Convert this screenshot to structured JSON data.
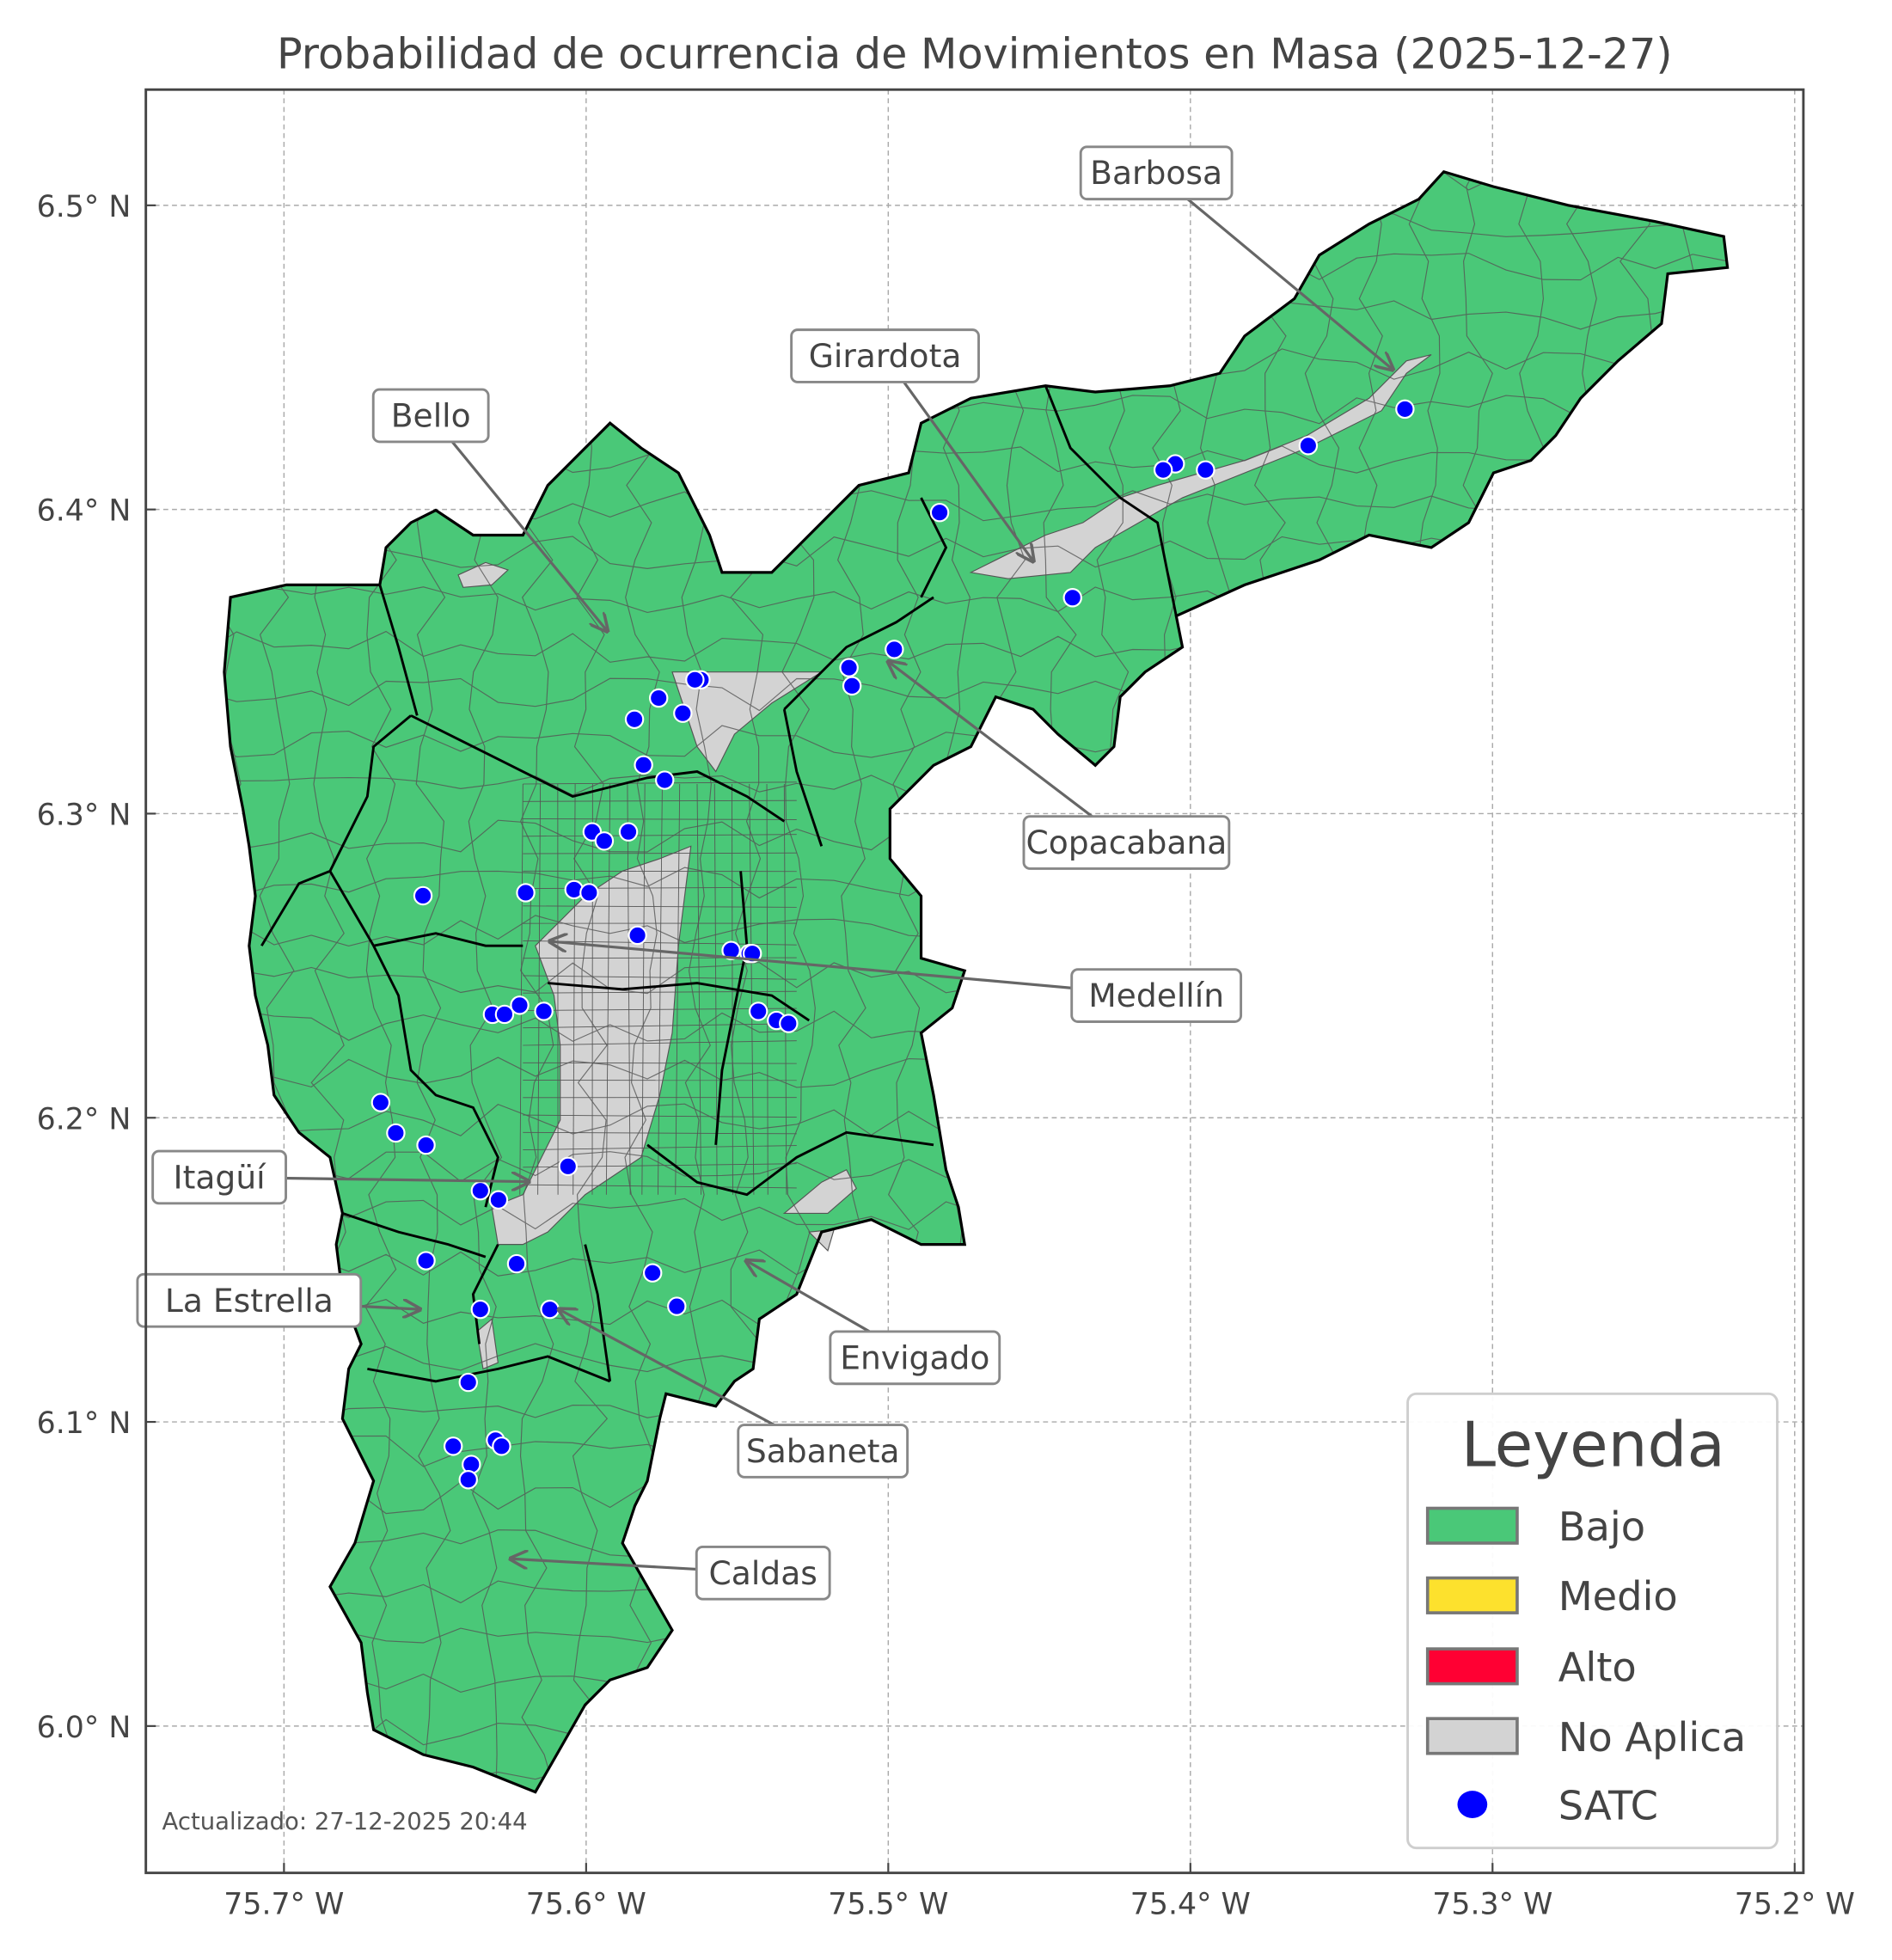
{
  "chart_data": {
    "type": "map",
    "title": "Probabilidad de ocurrencia de Movimientos en Masa (2025-12-27)",
    "xlim": [
      -75.746,
      -75.197
    ],
    "ylim": [
      5.952,
      6.538
    ],
    "grid": true,
    "xticks": [
      {
        "value": -75.7,
        "label": "75.7° W"
      },
      {
        "value": -75.6,
        "label": "75.6° W"
      },
      {
        "value": -75.5,
        "label": "75.5° W"
      },
      {
        "value": -75.4,
        "label": "75.4° W"
      },
      {
        "value": -75.3,
        "label": "75.3° W"
      },
      {
        "value": -75.2,
        "label": "75.2° W"
      }
    ],
    "yticks": [
      {
        "value": 6.0,
        "label": "6.0° N"
      },
      {
        "value": 6.1,
        "label": "6.1° N"
      },
      {
        "value": 6.2,
        "label": "6.2° N"
      },
      {
        "value": 6.3,
        "label": "6.3° N"
      },
      {
        "value": 6.4,
        "label": "6.4° N"
      },
      {
        "value": 6.5,
        "label": "6.5° N"
      }
    ],
    "region_class": "Bajo",
    "colors": {
      "Bajo": "#4ac878",
      "Medio": "#fde12d",
      "Alto": "#ff0033",
      "No Aplica": "#d3d3d3",
      "SATC": "#0000ff"
    },
    "satc_points": [
      [
        -75.329,
        6.433
      ],
      [
        -75.361,
        6.421
      ],
      [
        -75.395,
        6.413
      ],
      [
        -75.405,
        6.415
      ],
      [
        -75.409,
        6.413
      ],
      [
        -75.483,
        6.399
      ],
      [
        -75.439,
        6.371
      ],
      [
        -75.498,
        6.354
      ],
      [
        -75.513,
        6.348
      ],
      [
        -75.512,
        6.342
      ],
      [
        -75.562,
        6.344
      ],
      [
        -75.564,
        6.344
      ],
      [
        -75.576,
        6.338
      ],
      [
        -75.584,
        6.331
      ],
      [
        -75.568,
        6.333
      ],
      [
        -75.581,
        6.316
      ],
      [
        -75.574,
        6.311
      ],
      [
        -75.598,
        6.294
      ],
      [
        -75.586,
        6.294
      ],
      [
        -75.594,
        6.291
      ],
      [
        -75.654,
        6.273
      ],
      [
        -75.62,
        6.274
      ],
      [
        -75.604,
        6.275
      ],
      [
        -75.599,
        6.274
      ],
      [
        -75.583,
        6.26
      ],
      [
        -75.552,
        6.255
      ],
      [
        -75.546,
        6.254
      ],
      [
        -75.545,
        6.254
      ],
      [
        -75.543,
        6.235
      ],
      [
        -75.537,
        6.232
      ],
      [
        -75.533,
        6.231
      ],
      [
        -75.622,
        6.237
      ],
      [
        -75.631,
        6.234
      ],
      [
        -75.627,
        6.234
      ],
      [
        -75.614,
        6.235
      ],
      [
        -75.668,
        6.205
      ],
      [
        -75.663,
        6.195
      ],
      [
        -75.653,
        6.191
      ],
      [
        -75.606,
        6.184
      ],
      [
        -75.635,
        6.176
      ],
      [
        -75.629,
        6.173
      ],
      [
        -75.653,
        6.153
      ],
      [
        -75.623,
        6.152
      ],
      [
        -75.578,
        6.149
      ],
      [
        -75.57,
        6.138
      ],
      [
        -75.635,
        6.137
      ],
      [
        -75.612,
        6.137
      ],
      [
        -75.639,
        6.113
      ],
      [
        -75.644,
        6.092
      ],
      [
        -75.63,
        6.094
      ],
      [
        -75.628,
        6.092
      ],
      [
        -75.638,
        6.086
      ],
      [
        -75.639,
        6.081
      ]
    ],
    "annotations": [
      {
        "text": "Barbosa",
        "target": [
          -75.333,
          6.446
        ]
      },
      {
        "text": "Girardota",
        "target": [
          -75.452,
          6.383
        ]
      },
      {
        "text": "Bello",
        "target": [
          -75.593,
          6.36
        ]
      },
      {
        "text": "Copacabana",
        "target": [
          -75.5,
          6.35
        ]
      },
      {
        "text": "Medellín",
        "target": [
          -75.612,
          6.258
        ]
      },
      {
        "text": "Itagüí",
        "target": [
          -75.619,
          6.179
        ]
      },
      {
        "text": "La Estrella",
        "target": [
          -75.655,
          6.137
        ]
      },
      {
        "text": "Envigado",
        "target": [
          -75.547,
          6.153
        ]
      },
      {
        "text": "Sabaneta",
        "target": [
          -75.609,
          6.137
        ]
      },
      {
        "text": "Caldas",
        "target": [
          -75.625,
          6.055
        ]
      }
    ],
    "legend": {
      "title": "Leyenda",
      "placement": "lower-right",
      "items": [
        {
          "label": "Bajo",
          "color": "#4ac878",
          "kind": "patch"
        },
        {
          "label": "Medio",
          "color": "#fde12d",
          "kind": "patch"
        },
        {
          "label": "Alto",
          "color": "#ff0033",
          "kind": "patch"
        },
        {
          "label": "No Aplica",
          "color": "#d3d3d3",
          "kind": "patch"
        },
        {
          "label": "SATC",
          "color": "#0000ff",
          "kind": "point"
        }
      ]
    },
    "footer": "Actualizado: 27-12-2025 20:44"
  }
}
